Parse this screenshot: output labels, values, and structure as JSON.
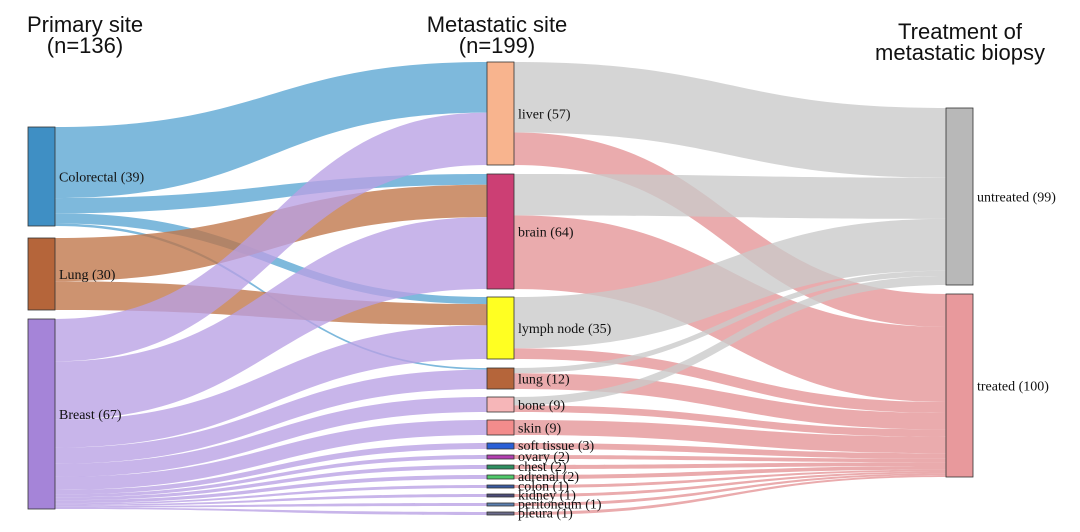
{
  "headers": {
    "primary": {
      "line1": "Primary site",
      "line2": "(n=136)"
    },
    "metastatic": {
      "line1": "Metastatic site",
      "line2": "(n=199)"
    },
    "treatment": {
      "line1": "Treatment of",
      "line2": "metastatic biopsy"
    }
  },
  "nodes": {
    "primary": [
      {
        "id": "colorectal",
        "label": "Colorectal (39)",
        "color": "#3f8fc4"
      },
      {
        "id": "lung_p",
        "label": "Lung (30)",
        "color": "#b5653a"
      },
      {
        "id": "breast",
        "label": "Breast (67)",
        "color": "#a584d8"
      }
    ],
    "metastatic": [
      {
        "id": "liver",
        "label": "liver (57)",
        "color": "#f8b48e"
      },
      {
        "id": "brain",
        "label": "brain (64)",
        "color": "#cc3f74"
      },
      {
        "id": "lymph",
        "label": "lymph node (35)",
        "color": "#ffff22"
      },
      {
        "id": "lung_m",
        "label": "lung (12)",
        "color": "#b5653a"
      },
      {
        "id": "bone",
        "label": "bone (9)",
        "color": "#f6b6b8"
      },
      {
        "id": "skin",
        "label": "skin (9)",
        "color": "#f38c8c"
      },
      {
        "id": "soft",
        "label": "soft tissue (3)",
        "color": "#2a5fd6"
      },
      {
        "id": "ovary",
        "label": "ovary (2)",
        "color": "#b23fb0"
      },
      {
        "id": "chest",
        "label": "chest (2)",
        "color": "#2f8f61"
      },
      {
        "id": "adrenal",
        "label": "adrenal (2)",
        "color": "#4fc86a"
      },
      {
        "id": "colon",
        "label": "colon (1)",
        "color": "#3a5aa0"
      },
      {
        "id": "kidney",
        "label": "kidney (1)",
        "color": "#4b4b78"
      },
      {
        "id": "peritoneum",
        "label": "peritoneum (1)",
        "color": "#5a7fb0"
      },
      {
        "id": "pleura",
        "label": "pleura (1)",
        "color": "#6a6a8a"
      }
    ],
    "treatment": [
      {
        "id": "untreated",
        "label": "untreated (99)",
        "color": "#b8b8b8"
      },
      {
        "id": "treated",
        "label": "treated (100)",
        "color": "#e8999c"
      }
    ]
  },
  "link_colors": {
    "colorectal": "#5aa5d2",
    "lung_p": "#bf7448",
    "breast": "#b9a0e4",
    "untreated": "#c9c9c9",
    "treated": "#e49496"
  },
  "flows_primary_to_metastatic": [
    {
      "source": "colorectal",
      "target": "liver",
      "value": 28
    },
    {
      "source": "colorectal",
      "target": "brain",
      "value": 6
    },
    {
      "source": "colorectal",
      "target": "lymph",
      "value": 4
    },
    {
      "source": "colorectal",
      "target": "lung_m",
      "value": 1
    },
    {
      "source": "lung_p",
      "target": "brain",
      "value": 18
    },
    {
      "source": "lung_p",
      "target": "lymph",
      "value": 12
    },
    {
      "source": "breast",
      "target": "liver",
      "value": 29
    },
    {
      "source": "breast",
      "target": "brain",
      "value": 40
    },
    {
      "source": "breast",
      "target": "lymph",
      "value": 19
    },
    {
      "source": "breast",
      "target": "lung_m",
      "value": 11
    },
    {
      "source": "breast",
      "target": "bone",
      "value": 9
    },
    {
      "source": "breast",
      "target": "skin",
      "value": 9
    },
    {
      "source": "breast",
      "target": "soft",
      "value": 3
    },
    {
      "source": "breast",
      "target": "ovary",
      "value": 2
    },
    {
      "source": "breast",
      "target": "chest",
      "value": 2
    },
    {
      "source": "breast",
      "target": "adrenal",
      "value": 2
    },
    {
      "source": "breast",
      "target": "colon",
      "value": 1
    },
    {
      "source": "breast",
      "target": "kidney",
      "value": 1
    },
    {
      "source": "breast",
      "target": "peritoneum",
      "value": 1
    },
    {
      "source": "breast",
      "target": "pleura",
      "value": 1
    }
  ],
  "flows_metastatic_to_treatment": [
    {
      "source": "liver",
      "target": "untreated",
      "value": 39
    },
    {
      "source": "liver",
      "target": "treated",
      "value": 18
    },
    {
      "source": "brain",
      "target": "untreated",
      "value": 23
    },
    {
      "source": "brain",
      "target": "treated",
      "value": 41
    },
    {
      "source": "lymph",
      "target": "untreated",
      "value": 29
    },
    {
      "source": "lymph",
      "target": "treated",
      "value": 6
    },
    {
      "source": "lung_m",
      "target": "untreated",
      "value": 3
    },
    {
      "source": "lung_m",
      "target": "treated",
      "value": 9
    },
    {
      "source": "bone",
      "target": "untreated",
      "value": 5
    },
    {
      "source": "bone",
      "target": "treated",
      "value": 4
    },
    {
      "source": "skin",
      "target": "treated",
      "value": 9
    },
    {
      "source": "soft",
      "target": "treated",
      "value": 3
    },
    {
      "source": "ovary",
      "target": "treated",
      "value": 2
    },
    {
      "source": "chest",
      "target": "treated",
      "value": 2
    },
    {
      "source": "adrenal",
      "target": "treated",
      "value": 2
    },
    {
      "source": "colon",
      "target": "treated",
      "value": 1
    },
    {
      "source": "kidney",
      "target": "treated",
      "value": 1
    },
    {
      "source": "peritoneum",
      "target": "treated",
      "value": 1
    },
    {
      "source": "pleura",
      "target": "treated",
      "value": 1
    }
  ]
}
